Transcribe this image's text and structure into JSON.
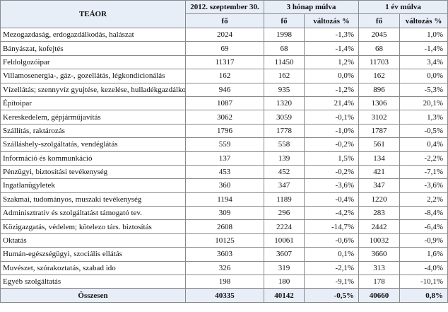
{
  "header": {
    "teaor": "TEÁOR",
    "col_2012": "2012. szeptember 30.",
    "col_3m": "3 hónap múlva",
    "col_1y": "1 év múlva",
    "fo": "fő",
    "valtozas": "változás %"
  },
  "rows": [
    {
      "name": "Mezogazdaság, erdogazdálkodás, halászat",
      "v2012": "2024",
      "v3m": "1998",
      "c3m": "-1,3%",
      "v1y": "2045",
      "c1y": "1,0%"
    },
    {
      "name": "Bányászat, kofejtés",
      "v2012": "69",
      "v3m": "68",
      "c3m": "-1,4%",
      "v1y": "68",
      "c1y": "-1,4%"
    },
    {
      "name": "Feldolgozóipar",
      "v2012": "11317",
      "v3m": "11450",
      "c3m": "1,2%",
      "v1y": "11703",
      "c1y": "3,4%"
    },
    {
      "name": "Villamosenergia-, gáz-, gozellátás, légkondicionálás",
      "v2012": "162",
      "v3m": "162",
      "c3m": "0,0%",
      "v1y": "162",
      "c1y": "0,0%"
    },
    {
      "name": "Vízellátás; szennyvíz gyujtése, kezelése, hulladékgazdálkodás",
      "v2012": "946",
      "v3m": "935",
      "c3m": "-1,2%",
      "v1y": "896",
      "c1y": "-5,3%"
    },
    {
      "name": "Építoipar",
      "v2012": "1087",
      "v3m": "1320",
      "c3m": "21,4%",
      "v1y": "1306",
      "c1y": "20,1%"
    },
    {
      "name": "Kereskedelem, gépjárműjavítás",
      "v2012": "3062",
      "v3m": "3059",
      "c3m": "-0,1%",
      "v1y": "3102",
      "c1y": "1,3%"
    },
    {
      "name": "Szállítás, raktározás",
      "v2012": "1796",
      "v3m": "1778",
      "c3m": "-1,0%",
      "v1y": "1787",
      "c1y": "-0,5%"
    },
    {
      "name": "Szálláshely-szolgáltatás, vendéglátás",
      "v2012": "559",
      "v3m": "558",
      "c3m": "-0,2%",
      "v1y": "561",
      "c1y": "0,4%"
    },
    {
      "name": "Információ és kommunkáció",
      "v2012": "137",
      "v3m": "139",
      "c3m": "1,5%",
      "v1y": "134",
      "c1y": "-2,2%"
    },
    {
      "name": "Pénzügyi, biztosítási tevékenység",
      "v2012": "453",
      "v3m": "452",
      "c3m": "-0,2%",
      "v1y": "421",
      "c1y": "-7,1%"
    },
    {
      "name": "Ingatlanügyletek",
      "v2012": "360",
      "v3m": "347",
      "c3m": "-3,6%",
      "v1y": "347",
      "c1y": "-3,6%"
    },
    {
      "name": "Szakmai, tudományos, muszaki tevékenység",
      "v2012": "1194",
      "v3m": "1189",
      "c3m": "-0,4%",
      "v1y": "1220",
      "c1y": "2,2%"
    },
    {
      "name": "Adminisztratív és szolgáltatást támogató tev.",
      "v2012": "309",
      "v3m": "296",
      "c3m": "-4,2%",
      "v1y": "283",
      "c1y": "-8,4%"
    },
    {
      "name": "Közigazgatás, védelem; kötelezo társ. biztosítás",
      "v2012": "2608",
      "v3m": "2224",
      "c3m": "-14,7%",
      "v1y": "2442",
      "c1y": "-6,4%"
    },
    {
      "name": "Oktatás",
      "v2012": "10125",
      "v3m": "10061",
      "c3m": "-0,6%",
      "v1y": "10032",
      "c1y": "-0,9%"
    },
    {
      "name": "Humán-egészségügyi, szociális ellátás",
      "v2012": "3603",
      "v3m": "3607",
      "c3m": "0,1%",
      "v1y": "3660",
      "c1y": "1,6%"
    },
    {
      "name": "Muvészet, szórakoztatás, szabad ido",
      "v2012": "326",
      "v3m": "319",
      "c3m": "-2,1%",
      "v1y": "313",
      "c1y": "-4,0%"
    },
    {
      "name": "Egyéb szolgáltatás",
      "v2012": "198",
      "v3m": "180",
      "c3m": "-9,1%",
      "v1y": "178",
      "c1y": "-10,1%"
    }
  ],
  "total": {
    "name": "Összesen",
    "v2012": "40335",
    "v3m": "40142",
    "c3m": "-0,5%",
    "v1y": "40660",
    "c1y": "0,8%"
  }
}
